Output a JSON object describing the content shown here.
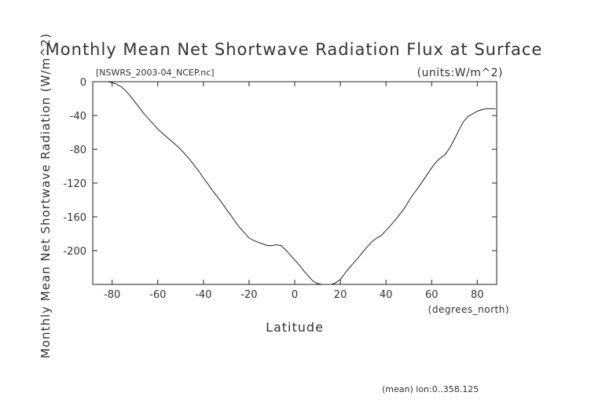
{
  "chart_data": {
    "type": "line",
    "title": "Monthly Mean Net Shortwave Radiation Flux at Surface",
    "file_label": "[NSWRS_2003-04_NCEP.nc]",
    "units_label": "(units:W/m^2)",
    "xlabel": "Latitude",
    "x_units": "(degrees_north)",
    "ylabel": "Monthly Mean Net Shortwave Radiation (W/m^2)",
    "footnote": "(mean) lon:0..358.125",
    "xlim": [
      -88.5,
      88.5
    ],
    "ylim": [
      -240,
      0
    ],
    "x_ticks": [
      -80,
      -60,
      -40,
      -20,
      0,
      20,
      40,
      60,
      80
    ],
    "y_ticks": [
      0,
      -40,
      -80,
      -120,
      -160,
      -200
    ],
    "grid": false,
    "series": [
      {
        "x": [
          -88,
          -85,
          -82,
          -80,
          -78,
          -76,
          -74,
          -72,
          -70,
          -68,
          -66,
          -64,
          -62,
          -60,
          -58,
          -55,
          -52,
          -50,
          -48,
          -46,
          -44,
          -42,
          -40,
          -38,
          -36,
          -34,
          -32,
          -30,
          -28,
          -26,
          -24,
          -22,
          -20,
          -18,
          -16,
          -14,
          -12,
          -10,
          -8,
          -6,
          -4,
          -2,
          0,
          2,
          4,
          6,
          8,
          10,
          12,
          14,
          16,
          18,
          20,
          22,
          24,
          26,
          28,
          30,
          32,
          34,
          36,
          38,
          40,
          42,
          44,
          46,
          48,
          50,
          52,
          54,
          56,
          58,
          60,
          62,
          64,
          66,
          68,
          70,
          72,
          74,
          76,
          78,
          80,
          82,
          84,
          86,
          88
        ],
        "y": [
          0,
          0,
          0,
          -1,
          -3,
          -6,
          -11,
          -17,
          -24,
          -31,
          -38,
          -44,
          -50,
          -56,
          -61,
          -68,
          -75,
          -80,
          -86,
          -92,
          -99,
          -106,
          -114,
          -121,
          -129,
          -136,
          -143,
          -151,
          -158,
          -166,
          -173,
          -179,
          -185,
          -188,
          -190,
          -192,
          -194,
          -194,
          -193,
          -194,
          -199,
          -205,
          -211,
          -217,
          -224,
          -230,
          -236,
          -239,
          -240,
          -240,
          -240,
          -238,
          -234,
          -227,
          -220,
          -214,
          -208,
          -201,
          -195,
          -189,
          -185,
          -182,
          -176,
          -170,
          -164,
          -157,
          -150,
          -141,
          -133,
          -126,
          -118,
          -110,
          -102,
          -95,
          -90,
          -86,
          -78,
          -68,
          -57,
          -47,
          -41,
          -38,
          -35,
          -33,
          -32,
          -32,
          -32
        ]
      }
    ]
  }
}
